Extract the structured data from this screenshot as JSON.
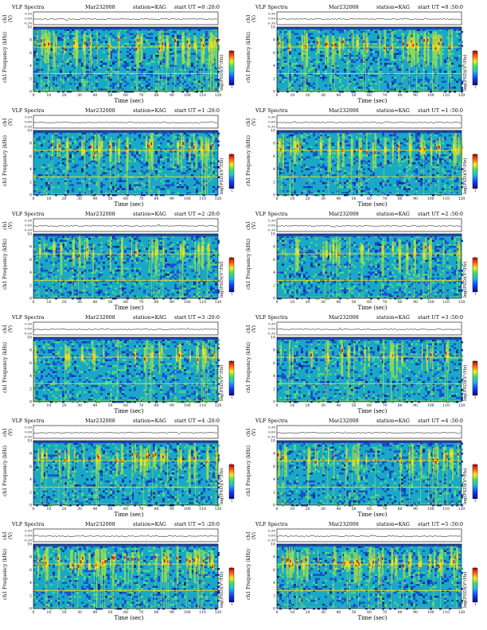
{
  "page": {
    "title": "VLF Spectra",
    "date_label": "Mar232008",
    "station_label": "station=KAG"
  },
  "labels": {
    "ch_axis": "ch1 (V)",
    "freq_axis": "Frequency (kHz)",
    "ch1": "ch1",
    "x_axis": "Time (sec)",
    "colorbar": "log(PSD)(V²/Hz)"
  },
  "colors": {
    "noise_bg": "#19a9c6",
    "band_yellow": "#f0e020",
    "burst_red": "#d01818",
    "top_band": "#1e3ca8"
  },
  "chart_data": [
    {
      "type": "heatmap",
      "start_label": "start UT =0 :20:0",
      "col": 0,
      "row": 0,
      "x_ticks": [
        0,
        10,
        20,
        30,
        40,
        50,
        60,
        70,
        80,
        90,
        100,
        110,
        120
      ],
      "xlim": [
        0,
        120
      ],
      "y_ticks": [
        0,
        2,
        4,
        6,
        8,
        10
      ],
      "ylim": [
        0,
        10
      ],
      "ch_ticks": [
        "0.30",
        "0.00",
        "-0.30"
      ],
      "cb_ticks": [
        "1",
        "-1"
      ],
      "activity": "high"
    },
    {
      "type": "heatmap",
      "start_label": "start UT =0 :50:0",
      "col": 1,
      "row": 0,
      "x_ticks": [
        0,
        10,
        20,
        30,
        40,
        50,
        60,
        70,
        80,
        90,
        100,
        110,
        120
      ],
      "xlim": [
        0,
        120
      ],
      "y_ticks": [
        0,
        2,
        4,
        6,
        8,
        10
      ],
      "ylim": [
        0,
        10
      ],
      "ch_ticks": [
        "0.30",
        "0.00",
        "-0.30"
      ],
      "cb_ticks": [
        "1",
        "-1"
      ],
      "activity": "high"
    },
    {
      "type": "heatmap",
      "start_label": "start UT =1 :20:0",
      "col": 0,
      "row": 1,
      "x_ticks": [
        0,
        10,
        20,
        30,
        40,
        50,
        60,
        70,
        80,
        90,
        100,
        110,
        120
      ],
      "xlim": [
        0,
        120
      ],
      "y_ticks": [
        0,
        2,
        4,
        6,
        8,
        10
      ],
      "ylim": [
        0,
        10
      ],
      "ch_ticks": [
        "0.30",
        "0.00",
        "-0.30"
      ],
      "cb_ticks": [
        "1",
        "-1"
      ],
      "activity": "medium"
    },
    {
      "type": "heatmap",
      "start_label": "start UT =1 :50:0",
      "col": 1,
      "row": 1,
      "x_ticks": [
        0,
        10,
        20,
        30,
        40,
        50,
        60,
        70,
        80,
        90,
        100,
        110,
        120
      ],
      "xlim": [
        0,
        120
      ],
      "y_ticks": [
        0,
        2,
        4,
        6,
        8,
        10
      ],
      "ylim": [
        0,
        10
      ],
      "ch_ticks": [
        "0.30",
        "0.00",
        "-0.30"
      ],
      "cb_ticks": [
        "1",
        "-1"
      ],
      "activity": "medium"
    },
    {
      "type": "heatmap",
      "start_label": "start UT =2 :20:0",
      "col": 0,
      "row": 2,
      "x_ticks": [
        0,
        10,
        20,
        30,
        40,
        50,
        60,
        70,
        80,
        90,
        100,
        110,
        120
      ],
      "xlim": [
        0,
        120
      ],
      "y_ticks": [
        0,
        2,
        4,
        6,
        8,
        10
      ],
      "ylim": [
        0,
        10
      ],
      "ch_ticks": [
        "0.30",
        "0.00",
        "-0.30"
      ],
      "cb_ticks": [
        "1",
        "-1"
      ],
      "activity": "low"
    },
    {
      "type": "heatmap",
      "start_label": "start UT =2 :50:0",
      "col": 1,
      "row": 2,
      "x_ticks": [
        0,
        10,
        20,
        30,
        40,
        50,
        60,
        70,
        80,
        90,
        100,
        110,
        120
      ],
      "xlim": [
        0,
        120
      ],
      "y_ticks": [
        0,
        2,
        4,
        6,
        8,
        10
      ],
      "ylim": [
        0,
        10
      ],
      "ch_ticks": [
        "0.30",
        "0.00",
        "-0.30"
      ],
      "cb_ticks": [
        "1",
        "-1"
      ],
      "activity": "low"
    },
    {
      "type": "heatmap",
      "start_label": "start UT =3 :20:0",
      "col": 0,
      "row": 3,
      "x_ticks": [
        0,
        10,
        20,
        30,
        40,
        50,
        60,
        70,
        80,
        90,
        100,
        110,
        120
      ],
      "xlim": [
        0,
        120
      ],
      "y_ticks": [
        0,
        2,
        4,
        6,
        8,
        10
      ],
      "ylim": [
        0,
        10
      ],
      "ch_ticks": [
        "0.30",
        "0.00",
        "-0.30"
      ],
      "cb_ticks": [
        "1",
        "-1"
      ],
      "activity": "low"
    },
    {
      "type": "heatmap",
      "start_label": "start UT =3 :50:0",
      "col": 1,
      "row": 3,
      "x_ticks": [
        0,
        10,
        20,
        30,
        40,
        50,
        60,
        70,
        80,
        90,
        100,
        110,
        120
      ],
      "xlim": [
        0,
        120
      ],
      "y_ticks": [
        0,
        2,
        4,
        6,
        8,
        10
      ],
      "ylim": [
        0,
        10
      ],
      "ch_ticks": [
        "0.30",
        "0.00",
        "-0.30"
      ],
      "cb_ticks": [
        "1",
        "-1"
      ],
      "activity": "low"
    },
    {
      "type": "heatmap",
      "start_label": "start UT =4 :20:0",
      "col": 0,
      "row": 4,
      "x_ticks": [
        0,
        10,
        20,
        30,
        40,
        50,
        60,
        70,
        80,
        90,
        100,
        110,
        120
      ],
      "xlim": [
        0,
        120
      ],
      "y_ticks": [
        0,
        2,
        4,
        6,
        8,
        10
      ],
      "ylim": [
        0,
        10
      ],
      "ch_ticks": [
        "0.30",
        "0.00",
        "-0.30"
      ],
      "cb_ticks": [
        "1",
        "-1"
      ],
      "activity": "medium"
    },
    {
      "type": "heatmap",
      "start_label": "start UT =4 :50:0",
      "col": 1,
      "row": 4,
      "x_ticks": [
        0,
        10,
        20,
        30,
        40,
        50,
        60,
        70,
        80,
        90,
        100,
        110,
        120
      ],
      "xlim": [
        0,
        120
      ],
      "y_ticks": [
        0,
        2,
        4,
        6,
        8,
        10
      ],
      "ylim": [
        0,
        10
      ],
      "ch_ticks": [
        "0.30",
        "0.00",
        "-0.30"
      ],
      "cb_ticks": [
        "1",
        "-1"
      ],
      "activity": "medium"
    },
    {
      "type": "heatmap",
      "start_label": "start UT =5 :20:0",
      "col": 0,
      "row": 5,
      "x_ticks": [
        0,
        10,
        20,
        30,
        40,
        50,
        60,
        70,
        80,
        90,
        100,
        110,
        120
      ],
      "xlim": [
        0,
        120
      ],
      "y_ticks": [
        0,
        2,
        4,
        6,
        8,
        10
      ],
      "ylim": [
        0,
        10
      ],
      "ch_ticks": [
        "0.30",
        "0.00",
        "-0.30"
      ],
      "cb_ticks": [
        "1",
        "-1"
      ],
      "activity": "high"
    },
    {
      "type": "heatmap",
      "start_label": "start UT =5 :50:0",
      "col": 1,
      "row": 5,
      "x_ticks": [
        0,
        10,
        20,
        30,
        40,
        50,
        60,
        70,
        80,
        90,
        100,
        110,
        120
      ],
      "xlim": [
        0,
        120
      ],
      "y_ticks": [
        0,
        2,
        4,
        6,
        8,
        10
      ],
      "ylim": [
        0,
        10
      ],
      "ch_ticks": [
        "0.30",
        "0.00",
        "-0.30"
      ],
      "cb_ticks": [
        "1",
        "-1"
      ],
      "activity": "high"
    }
  ]
}
